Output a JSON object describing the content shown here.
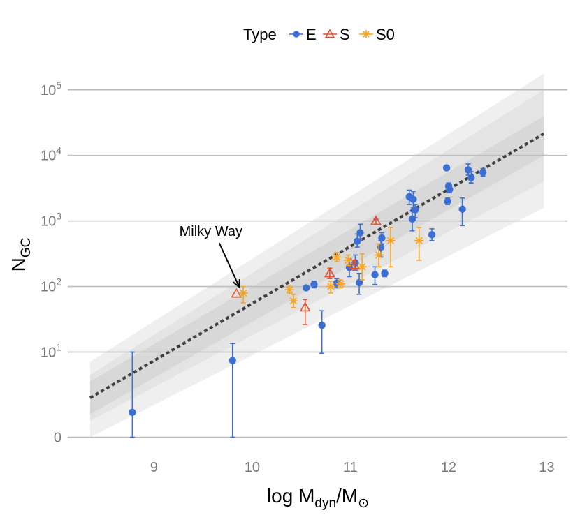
{
  "chart_data": {
    "type": "scatter",
    "title": "",
    "xlabel": "log M",
    "xlabel_sub": "dyn",
    "xlabel_sep": "/M",
    "xlabel_sub2": "⊙",
    "ylabel": "N",
    "ylabel_sub": "GC",
    "xlim": [
      8.05,
      13.1
    ],
    "ylim_y": [
      -0.22,
      5.55
    ],
    "x_ticks": [
      {
        "value": 9,
        "label": "9"
      },
      {
        "value": 10,
        "label": "10"
      },
      {
        "value": 11,
        "label": "11"
      },
      {
        "value": 12,
        "label": "12"
      },
      {
        "value": 13,
        "label": "13"
      }
    ],
    "y_ticks": [
      {
        "y": 0,
        "base": "0",
        "exp": ""
      },
      {
        "y": 1.3,
        "base": "10",
        "exp": "1"
      },
      {
        "y": 2.3,
        "base": "10",
        "exp": "2"
      },
      {
        "y": 3.3,
        "base": "10",
        "exp": "3"
      },
      {
        "y": 4.3,
        "base": "10",
        "exp": "4"
      },
      {
        "y": 5.3,
        "base": "10",
        "exp": "5"
      }
    ],
    "legend": {
      "title": "Type",
      "position": "top",
      "entries": [
        {
          "label": "E",
          "type": "E"
        },
        {
          "label": "S",
          "type": "S"
        },
        {
          "label": "S0",
          "type": "S0"
        }
      ]
    },
    "colors": {
      "E": "#3b6fd3",
      "S": "#e0512e",
      "S0": "#f5a623",
      "fit": "#404040",
      "band1": "#efefef",
      "band2": "#e4e4e4",
      "band3": "#d8d8d8",
      "grid": "#bdbdbd"
    },
    "fit_line": {
      "x": [
        8.35,
        12.97
      ],
      "y": [
        0.6,
        4.63
      ]
    },
    "bands": [
      {
        "name": "outer",
        "upper": [
          [
            8.35,
            1.15
          ],
          [
            12.97,
            5.55
          ]
        ],
        "lower": [
          [
            8.35,
            0.0
          ],
          [
            12.97,
            3.5
          ]
        ]
      },
      {
        "name": "middle",
        "upper": [
          [
            8.35,
            0.95
          ],
          [
            12.97,
            5.3
          ]
        ],
        "lower": [
          [
            8.35,
            0.25
          ],
          [
            12.97,
            3.9
          ]
        ]
      },
      {
        "name": "inner",
        "upper": [
          [
            8.35,
            0.85
          ],
          [
            12.97,
            4.9
          ]
        ],
        "lower": [
          [
            8.35,
            0.35
          ],
          [
            12.97,
            4.3
          ]
        ]
      }
    ],
    "series": [
      {
        "name": "E",
        "points": [
          {
            "x": 8.78,
            "y": 0.38,
            "lo": 0.0,
            "hi": 1.3
          },
          {
            "x": 9.8,
            "y": 1.17,
            "lo": 0.0,
            "hi": 1.43
          },
          {
            "x": 10.55,
            "y": 2.28,
            "lo": 2.28,
            "hi": 2.28
          },
          {
            "x": 10.63,
            "y": 2.33,
            "lo": 2.28,
            "hi": 2.38
          },
          {
            "x": 10.71,
            "y": 1.71,
            "lo": 1.28,
            "hi": 1.93
          },
          {
            "x": 10.86,
            "y": 2.35,
            "lo": 2.28,
            "hi": 2.42
          },
          {
            "x": 10.99,
            "y": 2.59,
            "lo": 2.45,
            "hi": 2.72
          },
          {
            "x": 11.05,
            "y": 2.66,
            "lo": 2.55,
            "hi": 2.78
          },
          {
            "x": 11.07,
            "y": 2.99,
            "lo": 2.9,
            "hi": 3.1
          },
          {
            "x": 11.09,
            "y": 2.36,
            "lo": 2.18,
            "hi": 2.5
          },
          {
            "x": 11.1,
            "y": 3.12,
            "lo": 3.0,
            "hi": 3.25
          },
          {
            "x": 11.25,
            "y": 2.48,
            "lo": 2.33,
            "hi": 2.6
          },
          {
            "x": 11.31,
            "y": 2.9,
            "lo": 2.75,
            "hi": 3.0
          },
          {
            "x": 11.32,
            "y": 3.04,
            "lo": 2.95,
            "hi": 3.12
          },
          {
            "x": 11.35,
            "y": 2.5,
            "lo": 2.45,
            "hi": 2.55
          },
          {
            "x": 11.6,
            "y": 3.67,
            "lo": 3.55,
            "hi": 3.77
          },
          {
            "x": 11.63,
            "y": 3.33,
            "lo": 3.15,
            "hi": 3.45
          },
          {
            "x": 11.64,
            "y": 3.63,
            "lo": 3.5,
            "hi": 3.75
          },
          {
            "x": 11.66,
            "y": 3.47,
            "lo": 3.35,
            "hi": 3.55
          },
          {
            "x": 11.83,
            "y": 3.09,
            "lo": 3.0,
            "hi": 3.18
          },
          {
            "x": 11.98,
            "y": 4.11,
            "lo": 4.11,
            "hi": 4.11
          },
          {
            "x": 11.99,
            "y": 3.6,
            "lo": 3.55,
            "hi": 3.65
          },
          {
            "x": 12.0,
            "y": 3.83,
            "lo": 3.78,
            "hi": 3.88
          },
          {
            "x": 12.01,
            "y": 3.78,
            "lo": 3.73,
            "hi": 3.83
          },
          {
            "x": 12.14,
            "y": 3.48,
            "lo": 3.23,
            "hi": 3.65
          },
          {
            "x": 12.2,
            "y": 4.08,
            "lo": 4.0,
            "hi": 4.17
          },
          {
            "x": 12.23,
            "y": 3.96,
            "lo": 3.88,
            "hi": 4.05
          },
          {
            "x": 12.35,
            "y": 4.04,
            "lo": 3.98,
            "hi": 4.1
          }
        ]
      },
      {
        "name": "S",
        "points": [
          {
            "x": 9.84,
            "y": 2.19,
            "lo": 2.19,
            "hi": 2.19
          },
          {
            "x": 10.54,
            "y": 1.98,
            "lo": 1.72,
            "hi": 2.1
          },
          {
            "x": 10.79,
            "y": 2.5,
            "lo": 2.42,
            "hi": 2.58
          },
          {
            "x": 11.04,
            "y": 2.63,
            "lo": 2.55,
            "hi": 2.7
          },
          {
            "x": 11.26,
            "y": 3.3,
            "lo": 3.25,
            "hi": 3.33
          }
        ]
      },
      {
        "name": "S0",
        "points": [
          {
            "x": 9.91,
            "y": 2.2,
            "lo": 2.05,
            "hi": 2.3
          },
          {
            "x": 10.38,
            "y": 2.25,
            "lo": 2.2,
            "hi": 2.3
          },
          {
            "x": 10.42,
            "y": 2.08,
            "lo": 1.98,
            "hi": 2.18
          },
          {
            "x": 10.8,
            "y": 2.3,
            "lo": 2.2,
            "hi": 2.38
          },
          {
            "x": 10.86,
            "y": 2.75,
            "lo": 2.68,
            "hi": 2.82
          },
          {
            "x": 10.9,
            "y": 2.34,
            "lo": 2.28,
            "hi": 2.4
          },
          {
            "x": 10.98,
            "y": 2.7,
            "lo": 2.62,
            "hi": 2.78
          },
          {
            "x": 11.12,
            "y": 2.6,
            "lo": 2.4,
            "hi": 2.8
          },
          {
            "x": 11.29,
            "y": 2.78,
            "lo": 2.6,
            "hi": 2.95
          },
          {
            "x": 11.41,
            "y": 3.0,
            "lo": 2.6,
            "hi": 3.2
          },
          {
            "x": 11.7,
            "y": 3.0,
            "lo": 2.7,
            "hi": 3.2
          }
        ]
      }
    ],
    "annotations": [
      {
        "text": "Milky Way",
        "x": 9.58,
        "y": 3.07,
        "target_x": 9.84,
        "target_y": 2.25
      }
    ]
  }
}
